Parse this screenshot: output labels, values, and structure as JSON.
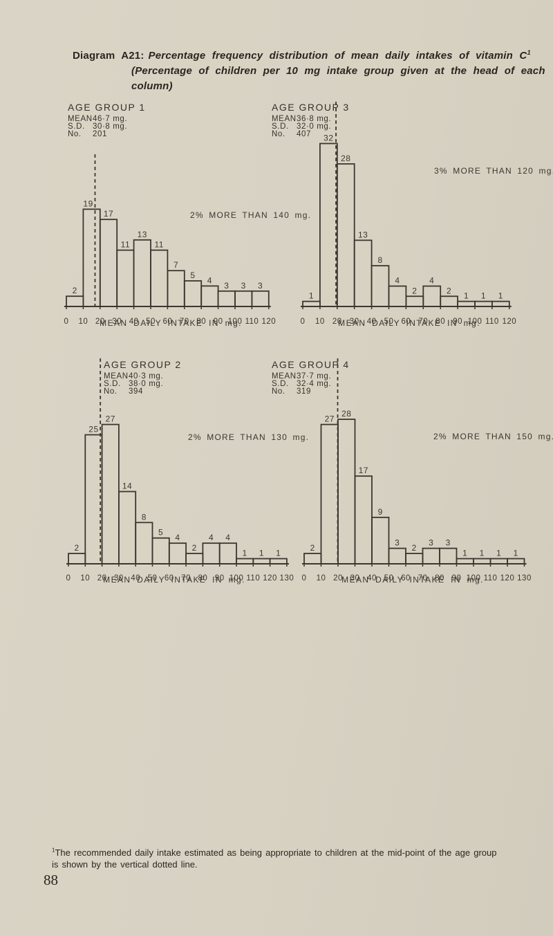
{
  "page": {
    "title_prefix": "Diagram A21:",
    "title_line1": "Percentage frequency distribution of mean daily intakes of vitamin C",
    "title_sup": "1",
    "title_line2": "(Percentage of children per 10 mg intake group given at the head of each",
    "title_line3": "column)",
    "footnote_sup": "1",
    "footnote_line1": "The recommended daily intake estimated as being appropriate to children at the mid-point of the age group",
    "footnote_line2": "is shown by the vertical dotted line.",
    "page_number": "88"
  },
  "colors": {
    "paper": "#d8d2c3",
    "ink": "#3a372f",
    "text": "#2d2a24"
  },
  "chart_data": [
    {
      "type": "bar",
      "position": "top-left",
      "title": "AGE GROUP 1",
      "stats": [
        {
          "label": "MEAN",
          "value": "46·7 mg."
        },
        {
          "label": "S.D.",
          "value": "30·8 mg."
        },
        {
          "label": "No.",
          "value": "201"
        }
      ],
      "categories": [
        "0-10",
        "10-20",
        "20-30",
        "30-40",
        "40-50",
        "50-60",
        "60-70",
        "70-80",
        "80-90",
        "90-100",
        "100-110",
        "110-120"
      ],
      "values": [
        2,
        19,
        17,
        11,
        13,
        11,
        7,
        5,
        4,
        3,
        3,
        3
      ],
      "x_ticks": [
        0,
        10,
        20,
        30,
        40,
        50,
        60,
        70,
        80,
        90,
        100,
        110,
        120
      ],
      "xlabel": "MEAN DAILY INTAKE IN mg.",
      "ylabel": "",
      "ylim": [
        0,
        35
      ],
      "grid": false,
      "annotation": "2% MORE THAN 140 mg.",
      "recommended_intake_line_mg": 17.0
    },
    {
      "type": "bar",
      "position": "top-right",
      "title": "AGE GROUP 3",
      "stats": [
        {
          "label": "MEAN",
          "value": "36·8 mg."
        },
        {
          "label": "S.D.",
          "value": "32·0 mg."
        },
        {
          "label": "No.",
          "value": "407"
        }
      ],
      "categories": [
        "0-10",
        "10-20",
        "20-30",
        "30-40",
        "40-50",
        "50-60",
        "60-70",
        "70-80",
        "80-90",
        "90-100",
        "100-110",
        "110-120"
      ],
      "values": [
        1,
        32,
        28,
        13,
        8,
        4,
        2,
        4,
        2,
        1,
        1,
        1
      ],
      "x_ticks": [
        0,
        10,
        20,
        30,
        40,
        50,
        60,
        70,
        80,
        90,
        100,
        110,
        120
      ],
      "xlabel": "MEAN DAILY INTAKE IN mg.",
      "ylabel": "",
      "ylim": [
        0,
        35
      ],
      "grid": false,
      "annotation": "3% MORE THAN 120 mg.",
      "recommended_intake_line_mg": 19.3
    },
    {
      "type": "bar",
      "position": "bottom-left",
      "title": "AGE GROUP 2",
      "stats": [
        {
          "label": "MEAN",
          "value": "40·3 mg."
        },
        {
          "label": "S.D.",
          "value": "38·0 mg."
        },
        {
          "label": "No.",
          "value": "394"
        }
      ],
      "categories": [
        "0-10",
        "10-20",
        "20-30",
        "30-40",
        "40-50",
        "50-60",
        "60-70",
        "70-80",
        "80-90",
        "90-100",
        "100-110",
        "110-120",
        "120-130"
      ],
      "values": [
        2,
        25,
        27,
        14,
        8,
        5,
        4,
        2,
        4,
        4,
        1,
        1,
        1
      ],
      "x_ticks": [
        0,
        10,
        20,
        30,
        40,
        50,
        60,
        70,
        80,
        90,
        100,
        110,
        120,
        130
      ],
      "xlabel": "MEAN DAILY INTAKE IN mg.",
      "ylabel": "",
      "ylim": [
        0,
        35
      ],
      "grid": false,
      "annotation": "2% MORE THAN 130 mg.",
      "recommended_intake_line_mg": 19.0
    },
    {
      "type": "bar",
      "position": "bottom-right",
      "title": "AGE GROUP 4",
      "stats": [
        {
          "label": "MEAN",
          "value": "37·7 mg."
        },
        {
          "label": "S.D.",
          "value": "32·4 mg."
        },
        {
          "label": "No.",
          "value": "319"
        }
      ],
      "categories": [
        "0-10",
        "10-20",
        "20-30",
        "30-40",
        "40-50",
        "50-60",
        "60-70",
        "70-80",
        "80-90",
        "90-100",
        "100-110",
        "110-120",
        "120-130"
      ],
      "values": [
        2,
        27,
        28,
        17,
        9,
        3,
        2,
        3,
        3,
        1,
        1,
        1,
        1
      ],
      "x_ticks": [
        0,
        10,
        20,
        30,
        40,
        50,
        60,
        70,
        80,
        90,
        100,
        110,
        120,
        130
      ],
      "xlabel": "MEAN DAILY INTAKE IN mg.",
      "ylabel": "",
      "ylim": [
        0,
        35
      ],
      "grid": false,
      "annotation": "2% MORE THAN 150 mg.",
      "recommended_intake_line_mg": 19.8
    }
  ]
}
